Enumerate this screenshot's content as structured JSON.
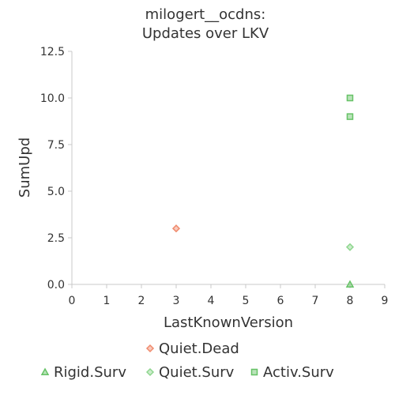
{
  "chart_data": {
    "type": "scatter",
    "title": [
      "milogert__ocdns:",
      "Updates over LKV"
    ],
    "xlabel": "LastKnownVersion",
    "ylabel": "SumUpd",
    "xlim": [
      0,
      9
    ],
    "ylim": [
      0,
      12.5
    ],
    "x_ticks": [
      "0",
      "1",
      "2",
      "3",
      "4",
      "5",
      "6",
      "7",
      "8",
      "9"
    ],
    "y_ticks": [
      "0.0",
      "2.5",
      "5.0",
      "7.5",
      "10.0",
      "12.5"
    ],
    "grid": false,
    "legend_placement": "bottom",
    "series": [
      {
        "name": "Quiet.Dead",
        "marker": "diamond",
        "color": "#f08a6c",
        "points": [
          {
            "x": 3,
            "y": 3
          }
        ]
      },
      {
        "name": "Rigid.Surv",
        "marker": "triangle",
        "color": "#66c266",
        "points": [
          {
            "x": 8,
            "y": 0
          }
        ]
      },
      {
        "name": "Quiet.Surv",
        "marker": "diamond",
        "color": "#8fd68f",
        "points": [
          {
            "x": 8,
            "y": 2
          }
        ]
      },
      {
        "name": "Activ.Surv",
        "marker": "square",
        "color": "#66c266",
        "points": [
          {
            "x": 8,
            "y": 9
          },
          {
            "x": 8,
            "y": 10
          }
        ]
      }
    ]
  }
}
